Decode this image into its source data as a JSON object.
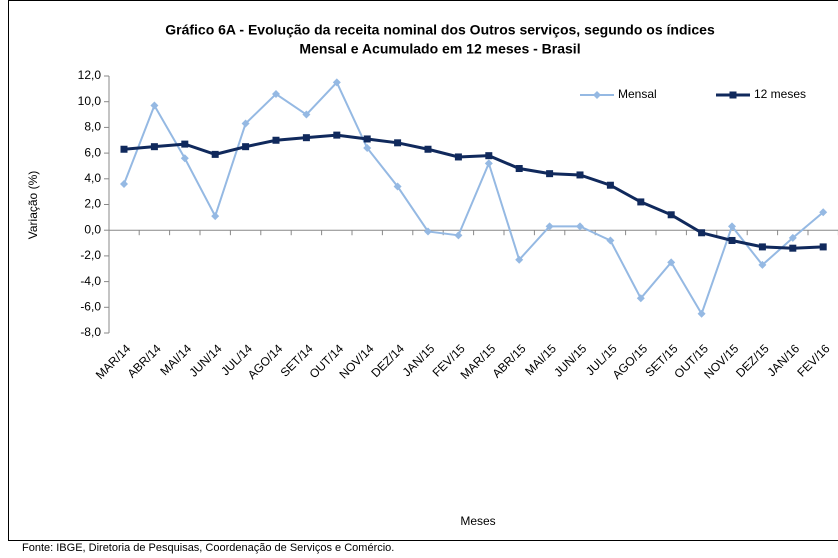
{
  "chart_data": {
    "type": "line",
    "title": [
      "Gráfico 6A - Evolução da receita nominal dos Outros serviços, segundo os índices",
      "Mensal e Acumulado em 12 meses - Brasil"
    ],
    "ylabel": "Variação (%)",
    "xlabel": "Meses",
    "source": "Fonte: IBGE, Diretoria de Pesquisas, Coordenação de Serviços e Comércio.",
    "categories": [
      "MAR/14",
      "ABR/14",
      "MAI/14",
      "JUN/14",
      "JUL/14",
      "AGO/14",
      "SET/14",
      "OUT/14",
      "NOV/14",
      "DEZ/14",
      "JAN/15",
      "FEV/15",
      "MAR/15",
      "ABR/15",
      "MAI/15",
      "JUN/15",
      "JUL/15",
      "AGO/15",
      "SET/15",
      "OUT/15",
      "NOV/15",
      "DEZ/15",
      "JAN/16",
      "FEV/16"
    ],
    "series": [
      {
        "name": "Mensal",
        "color": "#95b9e3",
        "marker": "diamond",
        "values": [
          3.6,
          9.7,
          5.6,
          1.1,
          8.3,
          10.6,
          9.0,
          11.5,
          6.4,
          3.4,
          -0.1,
          -0.4,
          5.2,
          -2.3,
          0.3,
          0.3,
          -0.8,
          -5.3,
          -2.5,
          -6.5,
          0.3,
          -2.7,
          -0.6,
          1.4
        ]
      },
      {
        "name": "12 meses",
        "color": "#10295c",
        "marker": "square",
        "values": [
          6.3,
          6.5,
          6.7,
          5.9,
          6.5,
          7.0,
          7.2,
          7.4,
          7.1,
          6.8,
          6.3,
          5.7,
          5.8,
          4.8,
          4.4,
          4.3,
          3.5,
          2.2,
          1.2,
          -0.2,
          -0.8,
          -1.3,
          -1.4,
          -1.3
        ]
      }
    ],
    "ylim": [
      -8,
      12
    ],
    "yticks": [
      {
        "value": -8,
        "label": "-8,0"
      },
      {
        "value": -6,
        "label": "-6,0"
      },
      {
        "value": -4,
        "label": "-4,0"
      },
      {
        "value": -2,
        "label": "-2,0"
      },
      {
        "value": 0,
        "label": "0,0"
      },
      {
        "value": 2,
        "label": "2,0"
      },
      {
        "value": 4,
        "label": "4,0"
      },
      {
        "value": 6,
        "label": "6,0"
      },
      {
        "value": 8,
        "label": "8,0"
      },
      {
        "value": 10,
        "label": "10,0"
      },
      {
        "value": 12,
        "label": "12,0"
      }
    ],
    "grid": false,
    "legend": "top-right"
  }
}
